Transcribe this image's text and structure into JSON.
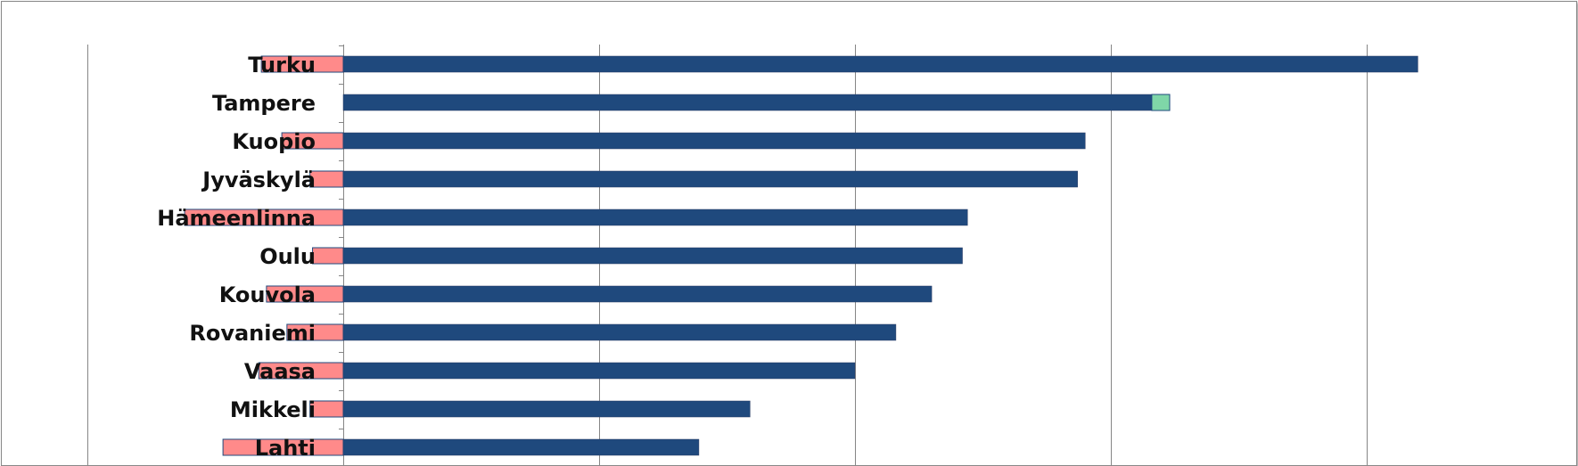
{
  "chart_data": {
    "type": "bar",
    "orientation": "horizontal",
    "stacked": "diverging",
    "title": "",
    "xlabel": "",
    "ylabel": "",
    "categories": [
      "Turku",
      "Tampere",
      "Kuopio",
      "Jyväskylä",
      "Hämeenlinna",
      "Oulu",
      "Kouvola",
      "Rovaniemi",
      "Vaasa",
      "Mikkeli",
      "Lahti"
    ],
    "series": [
      {
        "color": "#FF8A8A",
        "values": [
          -0.32,
          0,
          -0.24,
          -0.13,
          -0.62,
          -0.12,
          -0.3,
          -0.22,
          -0.33,
          -0.13,
          -0.47
        ]
      },
      {
        "color": "#1F497D",
        "values": [
          4.2,
          3.16,
          2.9,
          2.87,
          2.44,
          2.42,
          2.3,
          2.16,
          2.0,
          1.59,
          1.39
        ]
      },
      {
        "color": "#7FD6A8",
        "values": [
          0,
          0.07,
          0,
          0,
          0,
          0,
          0,
          0,
          0,
          0,
          0
        ]
      }
    ],
    "xlim": [
      -1,
      5
    ],
    "x_gridlines": [
      -1,
      0,
      1,
      2,
      3,
      4
    ],
    "grid": true,
    "legend": "none"
  },
  "colors": {
    "axis": "#868686",
    "gridline": "#868686",
    "frame": "#888888"
  }
}
